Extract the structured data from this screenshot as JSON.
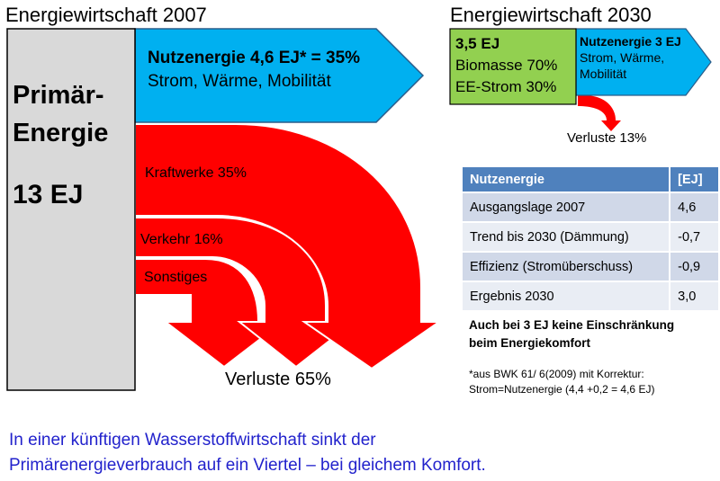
{
  "title_2007": "Energiewirtschaft 2007",
  "title_2030": "Energiewirtschaft 2030",
  "primary": {
    "line1": "Primär-",
    "line2": "Energie",
    "amount": "13 EJ"
  },
  "useful_2007": {
    "line1": "Nutzenergie 4,6 EJ* = 35%",
    "line2": "Strom, Wärme, Mobilität"
  },
  "flows_2007": {
    "power_plants": "Kraftwerke 35%",
    "traffic": "Verkehr 16%",
    "other": "Sonstiges"
  },
  "losses_2007": "Verluste 65%",
  "primary_2030": {
    "line1": "3,5 EJ",
    "line2": "Biomasse 70%",
    "line3": "EE-Strom 30%"
  },
  "useful_2030": {
    "line1": "Nutzenergie 3 EJ",
    "line2": "Strom, Wärme,",
    "line3": "Mobilität"
  },
  "losses_2030": "Verluste 13%",
  "table": {
    "headers": [
      "Nutzenergie",
      "[EJ]"
    ],
    "rows": [
      [
        "Ausgangslage 2007",
        "4,6"
      ],
      [
        "Trend bis 2030 (Dämmung)",
        "-0,7"
      ],
      [
        "Effizienz (Stromüberschuss)",
        "-0,9"
      ],
      [
        "Ergebnis 2030",
        "3,0"
      ]
    ]
  },
  "note_bold": {
    "line1": "Auch bei 3 EJ keine Einschränkung",
    "line2": "beim Energiekomfort"
  },
  "footnote": {
    "line1": "*aus  BWK 61/ 6(2009) mit Korrektur:",
    "line2": "Strom=Nutzenergie (4,4 +0,2 = 4,6 EJ)"
  },
  "bottom_text": {
    "line1": "In einer künftigen Wasserstoffwirtschaft sinkt der",
    "line2": "Primärenergieverbrauch auf ein Viertel – bei gleichem Komfort."
  },
  "colors": {
    "primary_box": "#d9d9d9",
    "useful": "#00b0f0",
    "loss": "#ff0000",
    "green": "#92d050",
    "blue_text": "#2222cc",
    "table_header": "#4f81bd"
  }
}
